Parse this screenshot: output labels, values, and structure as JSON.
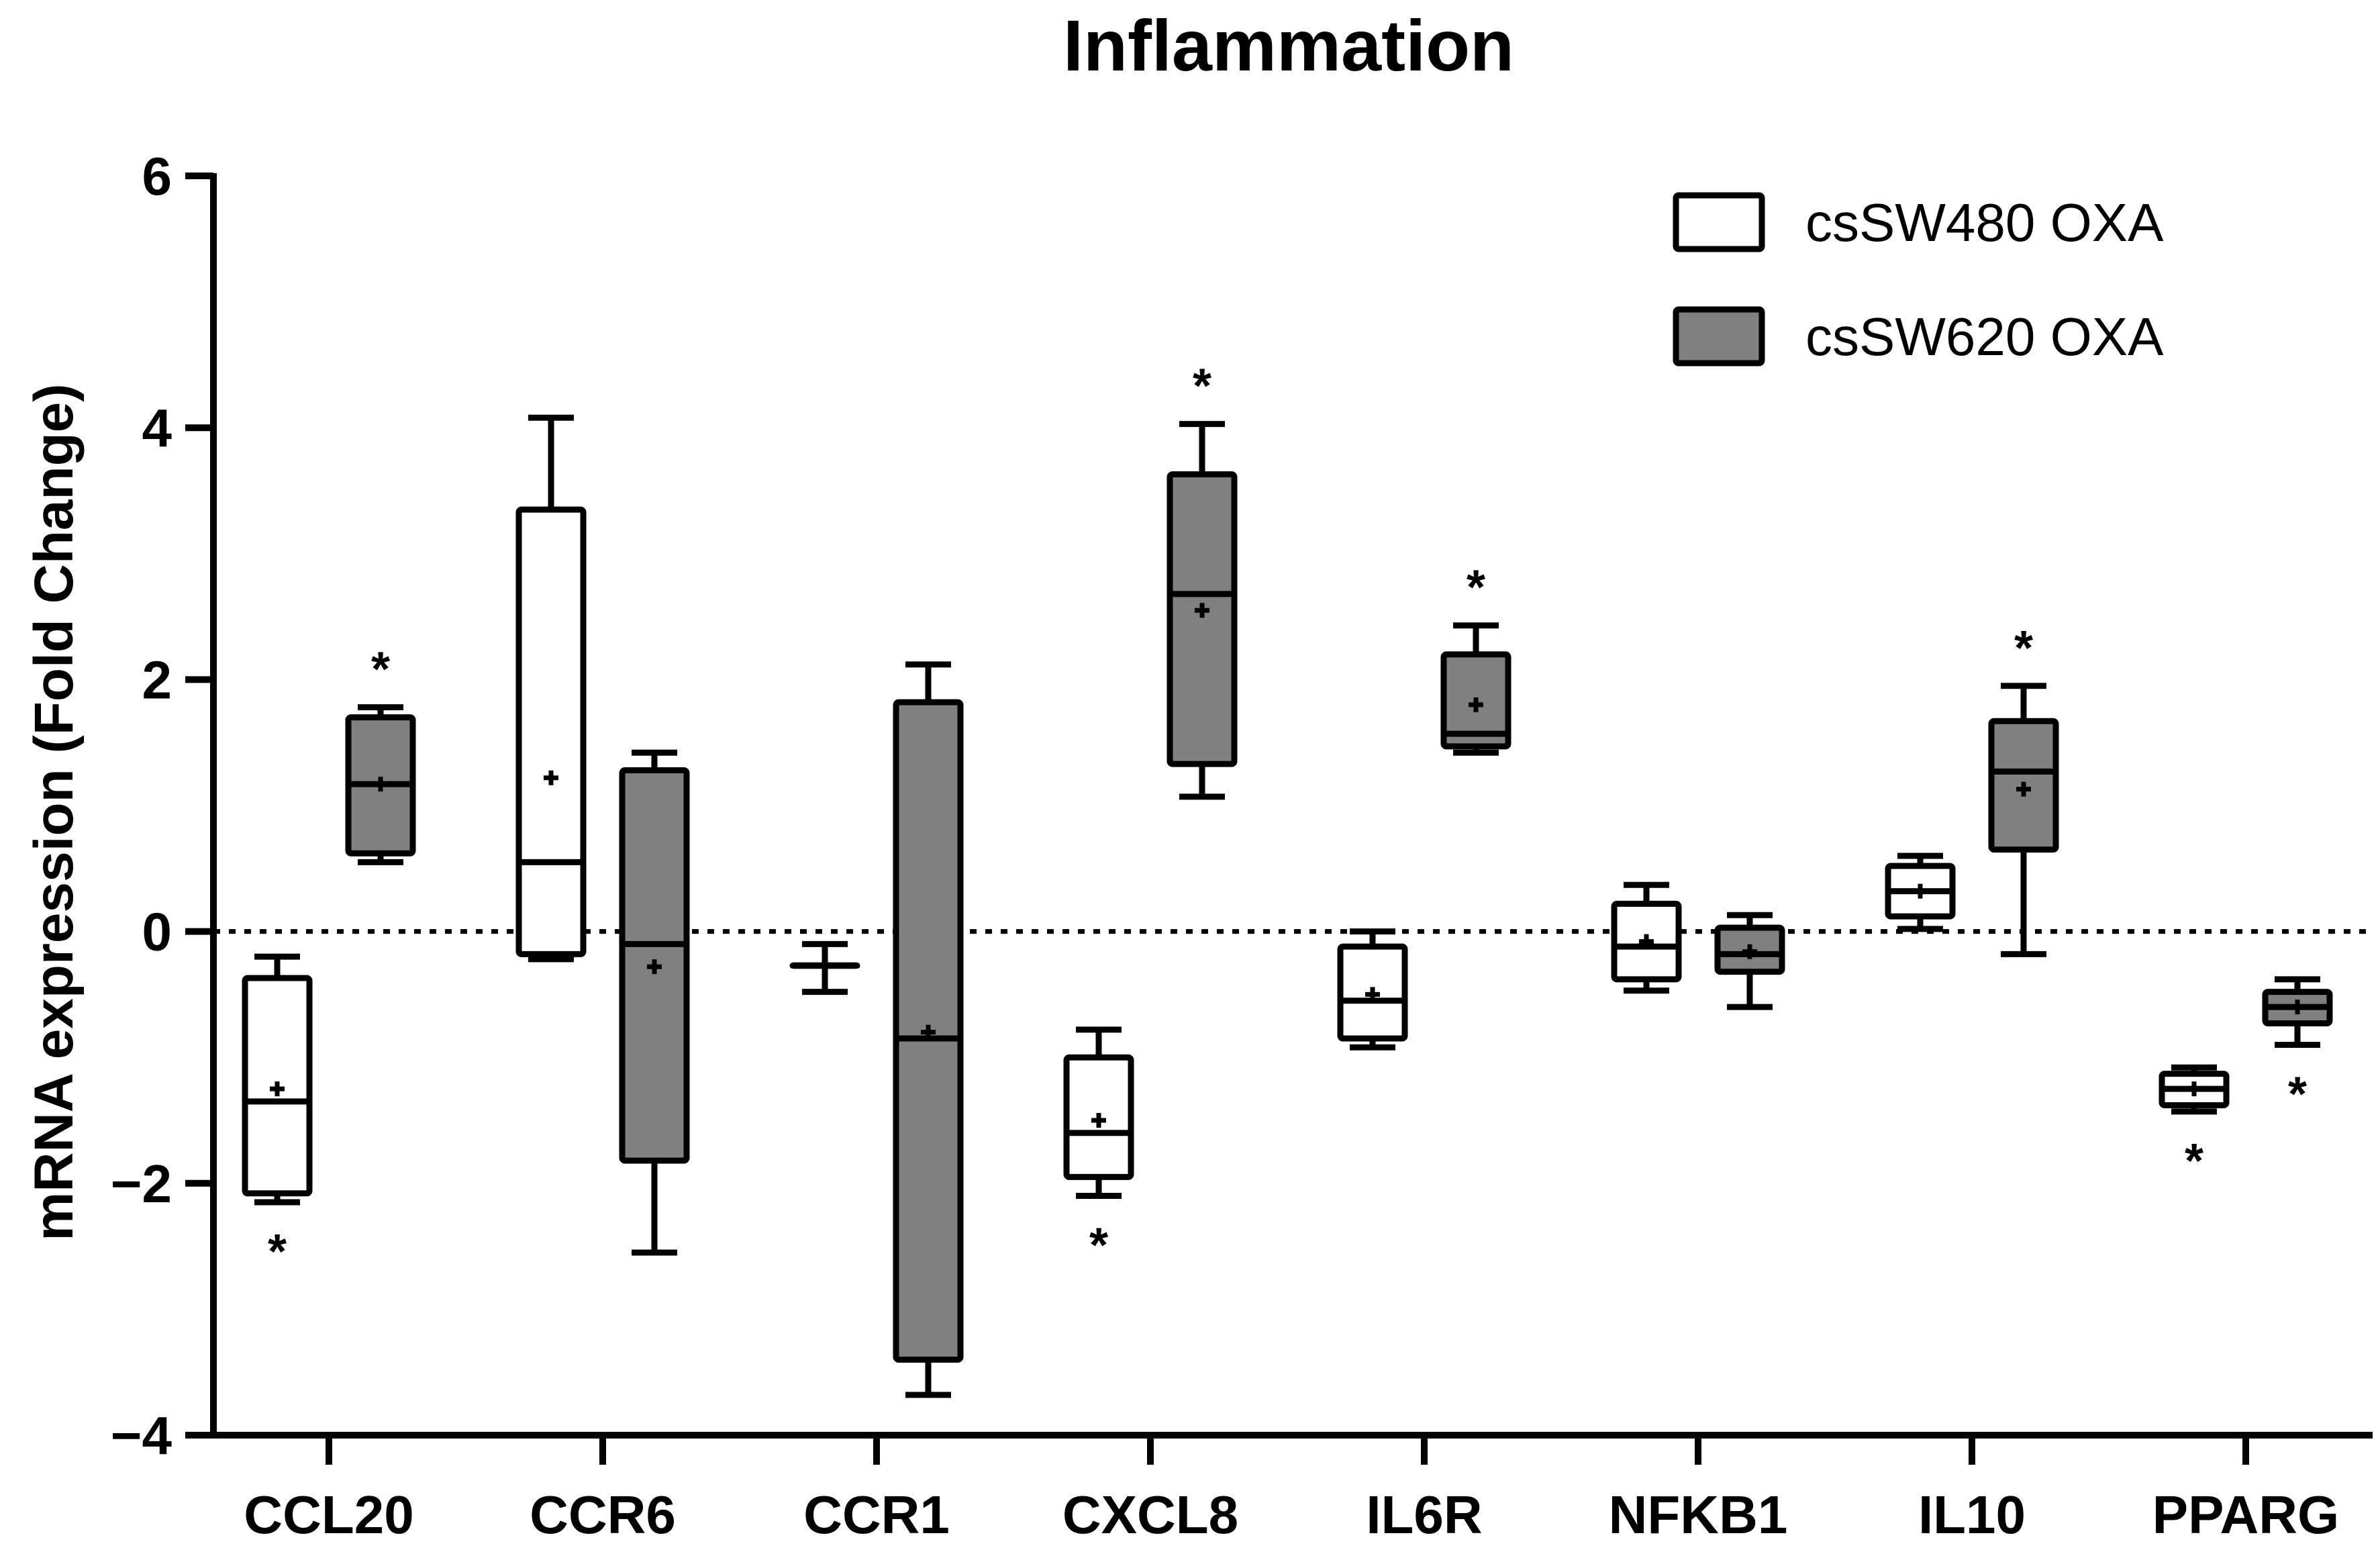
{
  "chart_data": {
    "type": "boxplot",
    "title": "Inflammation",
    "xlabel": "",
    "ylabel": "mRNA expression (Fold Change)",
    "ylim": [
      -4,
      6
    ],
    "yticks": [
      {
        "value": 6,
        "label": "6"
      },
      {
        "value": 4,
        "label": "4"
      },
      {
        "value": 2,
        "label": "2"
      },
      {
        "value": 0,
        "label": "0"
      },
      {
        "value": -2,
        "label": "−2"
      },
      {
        "value": -4,
        "label": "−4"
      }
    ],
    "reference_line": {
      "value": 0,
      "style": "dotted"
    },
    "categories": [
      "CCL20",
      "CCR6",
      "CCR1",
      "CXCL8",
      "IL6R",
      "NFKB1",
      "IL10",
      "PPARG"
    ],
    "legend_position": "top-right",
    "series": [
      {
        "name": "csSW480 OXA",
        "color": "#ffffff",
        "boxes": [
          {
            "min": -2.15,
            "q1": -2.08,
            "median": -1.35,
            "q3": -0.37,
            "max": -0.2,
            "mean": -1.25,
            "significant": true
          },
          {
            "min": -0.22,
            "q1": -0.18,
            "median": 0.55,
            "q3": 3.35,
            "max": 4.08,
            "mean": 1.22,
            "significant": false
          },
          {
            "min": -0.48,
            "q1": -0.27,
            "median": -0.27,
            "q3": -0.27,
            "max": -0.1,
            "mean": -0.27,
            "significant": false
          },
          {
            "min": -2.1,
            "q1": -1.95,
            "median": -1.6,
            "q3": -1.0,
            "max": -0.78,
            "mean": -1.5,
            "significant": true
          },
          {
            "min": -0.92,
            "q1": -0.85,
            "median": -0.55,
            "q3": -0.12,
            "max": 0.0,
            "mean": -0.5,
            "significant": false
          },
          {
            "min": -0.47,
            "q1": -0.38,
            "median": -0.12,
            "q3": 0.22,
            "max": 0.37,
            "mean": -0.08,
            "significant": false
          },
          {
            "min": 0.02,
            "q1": 0.12,
            "median": 0.32,
            "q3": 0.52,
            "max": 0.6,
            "mean": 0.32,
            "significant": false
          },
          {
            "min": -1.43,
            "q1": -1.38,
            "median": -1.25,
            "q3": -1.13,
            "max": -1.08,
            "mean": -1.25,
            "significant": true
          }
        ]
      },
      {
        "name": "csSW620 OXA",
        "color": "#808080",
        "boxes": [
          {
            "min": 0.55,
            "q1": 0.62,
            "median": 1.17,
            "q3": 1.7,
            "max": 1.78,
            "mean": 1.17,
            "significant": true
          },
          {
            "min": -2.55,
            "q1": -1.82,
            "median": -0.1,
            "q3": 1.28,
            "max": 1.42,
            "mean": -0.28,
            "significant": false
          },
          {
            "min": -3.68,
            "q1": -3.4,
            "median": -0.85,
            "q3": 1.82,
            "max": 2.12,
            "mean": -0.8,
            "significant": false
          },
          {
            "min": 1.07,
            "q1": 1.33,
            "median": 2.68,
            "q3": 3.63,
            "max": 4.03,
            "mean": 2.55,
            "significant": true
          },
          {
            "min": 1.42,
            "q1": 1.47,
            "median": 1.57,
            "q3": 2.2,
            "max": 2.43,
            "mean": 1.8,
            "significant": true
          },
          {
            "min": -0.6,
            "q1": -0.32,
            "median": -0.18,
            "q3": 0.03,
            "max": 0.13,
            "mean": -0.16,
            "significant": false
          },
          {
            "min": -0.18,
            "q1": 0.65,
            "median": 1.27,
            "q3": 1.67,
            "max": 1.95,
            "mean": 1.13,
            "significant": true
          },
          {
            "min": -0.9,
            "q1": -0.73,
            "median": -0.6,
            "q3": -0.48,
            "max": -0.38,
            "mean": -0.6,
            "significant": true
          }
        ]
      }
    ],
    "significance_marker": "*"
  }
}
